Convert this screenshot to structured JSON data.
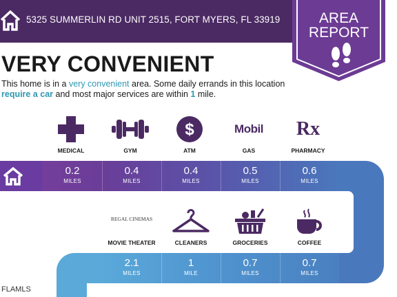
{
  "header": {
    "address": "5325 SUMMERLIN RD UNIT 2515, FORT MYERS, FL 33919",
    "home_icon": "home-icon",
    "background_color": "#4b2a63"
  },
  "badge": {
    "title_line1": "AREA",
    "title_line2": "REPORT",
    "icon": "footprints-icon",
    "color": "#6c3b94"
  },
  "rating": {
    "title": "VERY CONVENIENT",
    "desc_prefix": "This home is in a ",
    "desc_rating": "very convenient",
    "desc_mid": " area. Some daily errands in this location ",
    "desc_need": "require a car",
    "desc_mid2": " and most major services are within ",
    "desc_distance": "1",
    "desc_suffix": " mile."
  },
  "amenities_row1": [
    {
      "label": "MEDICAL",
      "icon": "medical-cross-icon",
      "distance": "0.2",
      "unit": "MILES"
    },
    {
      "label": "GYM",
      "icon": "dumbbell-icon",
      "distance": "0.4",
      "unit": "MILES"
    },
    {
      "label": "ATM",
      "icon": "dollar-icon",
      "distance": "0.4",
      "unit": "MILES"
    },
    {
      "label": "GAS",
      "icon": "mobil-logo",
      "logo_text": "Mobil",
      "distance": "0.5",
      "unit": "MILES"
    },
    {
      "label": "PHARMACY",
      "icon": "rx-icon",
      "logo_text": "Rx",
      "distance": "0.6",
      "unit": "MILES"
    }
  ],
  "amenities_row2": [
    {
      "label": "MOVIE THEATER",
      "icon": "regal-cinemas-logo",
      "logo_text": "REGAL CINEMAS",
      "distance": "2.1",
      "unit": "MILES"
    },
    {
      "label": "CLEANERS",
      "icon": "hanger-icon",
      "distance": "1",
      "unit": "MILE"
    },
    {
      "label": "GROCERIES",
      "icon": "grocery-basket-icon",
      "distance": "0.7",
      "unit": "MILES"
    },
    {
      "label": "COFFEE",
      "icon": "coffee-cup-icon",
      "distance": "0.7",
      "unit": "MILES"
    }
  ],
  "route": {
    "start_icon": "home-icon"
  },
  "colors": {
    "purple": "#6a3d98",
    "violet": "#5b52a8",
    "blue": "#4a78bd",
    "light_blue": "#4ea0d3",
    "highlight": "#2d97b2"
  },
  "watermark": "FLAMLS"
}
